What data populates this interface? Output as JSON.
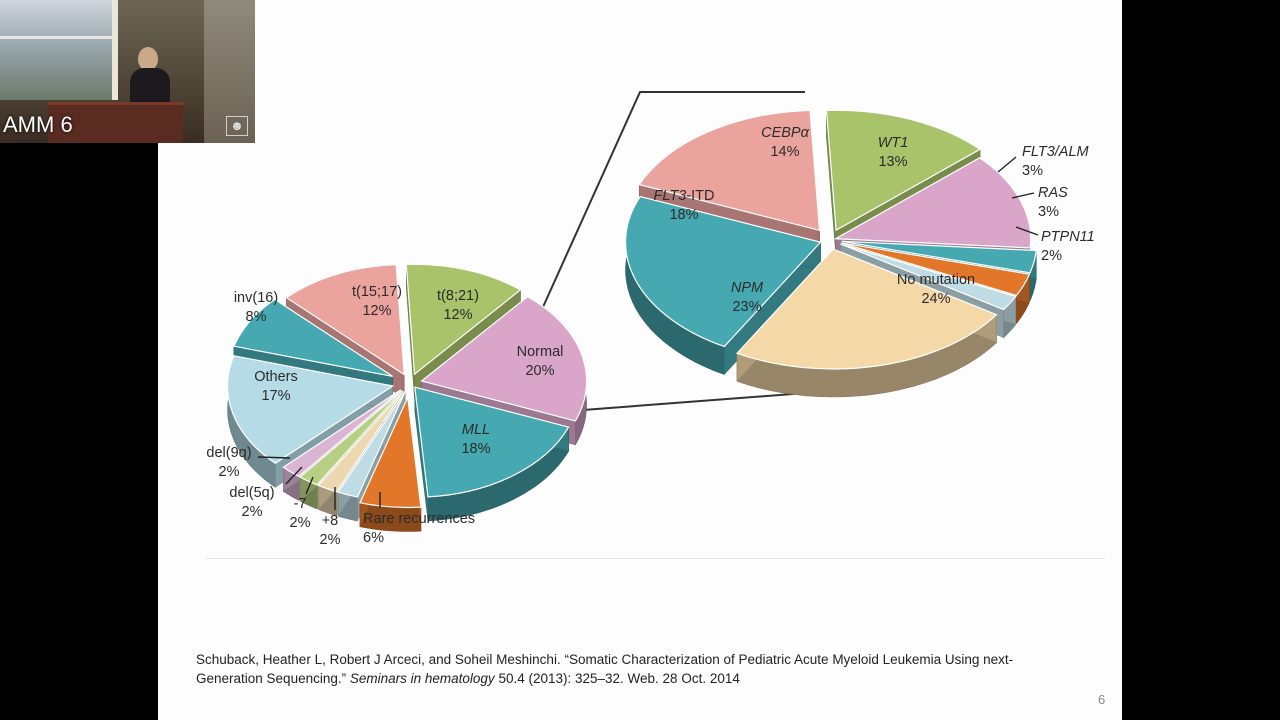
{
  "camera": {
    "label": "AMM 6"
  },
  "slide": {
    "page_number": "6",
    "citation": {
      "part1": "Schuback, Heather L, Robert J Arceci, and Soheil Meshinchi. “Somatic Characterization of Pediatric Acute Myeloid Leukemia Using next-Generation Sequencing.” ",
      "journal": "Seminars in hematology",
      "part2": " 50.4 (2013): 325–32. Web. 28 Oct. 2014"
    }
  },
  "chart_data": [
    {
      "type": "pie",
      "title": "",
      "units": "%",
      "slices": [
        {
          "label": "t(8;21)",
          "value": 12,
          "color": "#a9c36a"
        },
        {
          "label": "Normal",
          "value": 20,
          "color": "#d9a6c9"
        },
        {
          "label": "MLL",
          "value": 18,
          "color": "#46a9b2",
          "italic": true
        },
        {
          "label": "Rare recurrences",
          "value": 6,
          "color": "#e2772a"
        },
        {
          "label": "+8",
          "value": 2,
          "color": "#bfdbe4"
        },
        {
          "label": "-7",
          "value": 2,
          "color": "#edd7b0"
        },
        {
          "label": "del(5q)",
          "value": 2,
          "color": "#b7cf82"
        },
        {
          "label": "del(9q)",
          "value": 2,
          "color": "#d9b4d3"
        },
        {
          "label": "Others",
          "value": 17,
          "color": "#b5dbe6"
        },
        {
          "label": "inv(16)",
          "value": 8,
          "color": "#46a9b2"
        },
        {
          "label": "t(15;17)",
          "value": 12,
          "color": "#eba39e"
        }
      ]
    },
    {
      "type": "pie",
      "title": "",
      "units": "%",
      "slices": [
        {
          "label": "CEBPα",
          "value": 14,
          "color": "#a9c36a",
          "italic": true
        },
        {
          "label": "WT1",
          "value": 13,
          "color": "#d9a6c9",
          "italic": true
        },
        {
          "label": "FLT3/ALM",
          "value": 3,
          "color": "#46a9b2",
          "italic": true
        },
        {
          "label": "RAS",
          "value": 3,
          "color": "#e2772a",
          "italic": true
        },
        {
          "label": "PTPN11",
          "value": 2,
          "color": "#bfdbe4",
          "italic": true
        },
        {
          "label": "No mutation",
          "value": 24,
          "color": "#f5d8a8"
        },
        {
          "label": "NPM",
          "value": 23,
          "color": "#46a9b2",
          "italic": true
        },
        {
          "label": "FLT3-ITD",
          "value": 18,
          "color": "#eba39e",
          "italic_part": "FLT3"
        }
      ]
    }
  ]
}
